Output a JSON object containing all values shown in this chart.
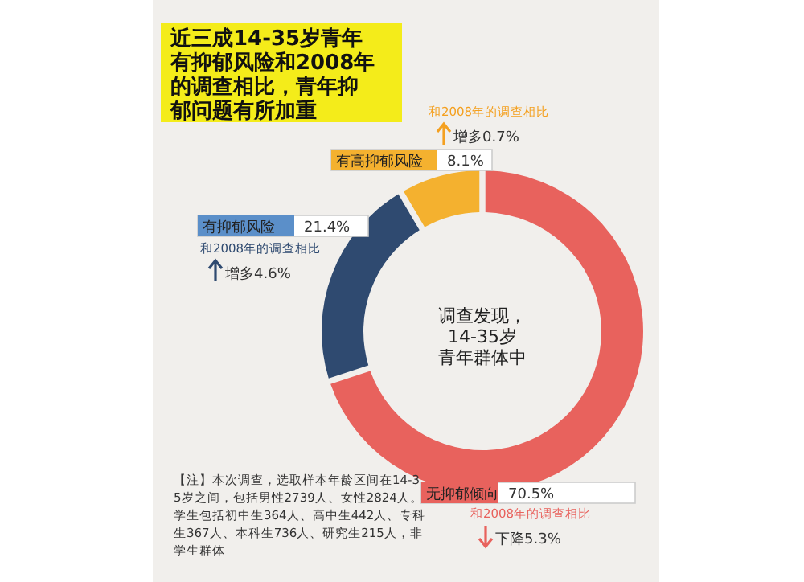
{
  "chart_data": {
    "type": "donut",
    "title": "近三成14-35岁青年有抑郁风险和2008年的调查相比，青年抑郁问题有所加重",
    "categories": [
      "无抑郁倾向",
      "有抑郁风险",
      "有高抑郁风险"
    ],
    "values": [
      70.5,
      21.4,
      8.1
    ],
    "value_labels": [
      "70.5%",
      "21.4%",
      "8.1%"
    ],
    "colors": [
      "#e8625d",
      "#2f4a70",
      "#f4b12f"
    ],
    "annotations": [
      "和2008年的调查相比",
      "下降5.3%",
      "和2008年的调查相比",
      "增多4.6%",
      "和2008年的调查相比",
      "增多0.7%",
      "调查发现，14-35岁青年群体中",
      "【注】本次调查，选取样本年龄区间在14-35岁之间，包括男性2739人、女性2824人。学生包括初中生364人、高中生442人、专科生367人、本科生736人、研究生215人，非学生群体"
    ]
  }
}
